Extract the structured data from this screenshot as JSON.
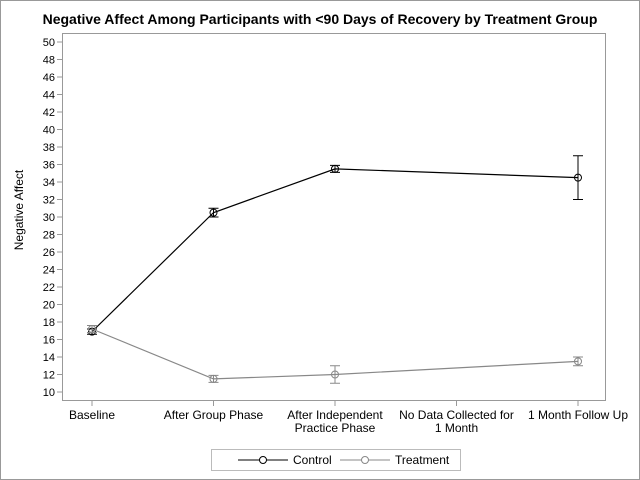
{
  "chart_data": {
    "type": "line",
    "title": "Negative Affect Among Participants with <90 Days of Recovery by Treatment Group",
    "xlabel": "",
    "ylabel": "Negative Affect",
    "ylim": [
      10,
      50
    ],
    "yticks": [
      10,
      12,
      14,
      16,
      18,
      20,
      22,
      24,
      26,
      28,
      30,
      32,
      34,
      36,
      38,
      40,
      42,
      44,
      46,
      48,
      50
    ],
    "categories": [
      [
        "Baseline"
      ],
      [
        "After Group Phase"
      ],
      [
        "After Independent",
        "Practice Phase"
      ],
      [
        "No Data Collected for",
        "1 Month"
      ],
      [
        "1 Month Follow Up"
      ]
    ],
    "grid": false,
    "legend_position": "bottom",
    "series": [
      {
        "name": "Control",
        "color": "#000000",
        "values": [
          16.9,
          30.5,
          35.5,
          null,
          34.5
        ],
        "lower": [
          16.6,
          30.0,
          35.1,
          null,
          32.0
        ],
        "upper": [
          17.2,
          31.0,
          35.9,
          null,
          37.0
        ]
      },
      {
        "name": "Treatment",
        "color": "#888888",
        "values": [
          17.2,
          11.5,
          12.0,
          null,
          13.5
        ],
        "lower": [
          16.8,
          11.1,
          11.0,
          null,
          13.0
        ],
        "upper": [
          17.6,
          11.9,
          13.0,
          null,
          14.0
        ]
      }
    ]
  }
}
